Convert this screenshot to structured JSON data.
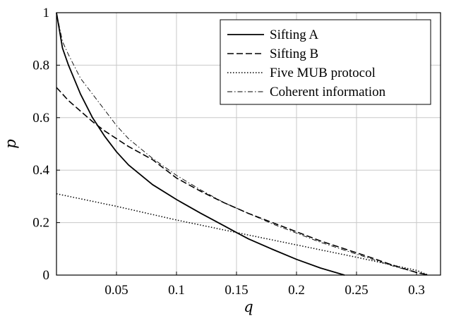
{
  "chart_data": {
    "type": "line",
    "xlabel": "q",
    "ylabel": "p",
    "xlim": [
      0,
      0.32
    ],
    "ylim": [
      0,
      1
    ],
    "xticks": [
      0.05,
      0.1,
      0.15,
      0.2,
      0.25,
      0.3
    ],
    "xtick_labels": [
      "0.05",
      "0.1",
      "0.15",
      "0.2",
      "0.25",
      "0.3"
    ],
    "yticks": [
      0,
      0.2,
      0.4,
      0.6,
      0.8,
      1
    ],
    "ytick_labels": [
      "0",
      "0.2",
      "0.4",
      "0.6",
      "0.8",
      "1"
    ],
    "grid": true,
    "legend_position": "top-right",
    "series": [
      {
        "name": "Sifting A",
        "style": "solid",
        "color": "#000000",
        "x": [
          0,
          0.005,
          0.01,
          0.02,
          0.03,
          0.04,
          0.05,
          0.06,
          0.08,
          0.1,
          0.12,
          0.14,
          0.15,
          0.16,
          0.18,
          0.2,
          0.22,
          0.24
        ],
        "y": [
          1.0,
          0.865,
          0.8,
          0.69,
          0.6,
          0.53,
          0.47,
          0.42,
          0.345,
          0.288,
          0.236,
          0.187,
          0.162,
          0.138,
          0.098,
          0.06,
          0.027,
          0.0
        ]
      },
      {
        "name": "Sifting B",
        "style": "dashed",
        "color": "#000000",
        "x": [
          0,
          0.01,
          0.02,
          0.03,
          0.04,
          0.05,
          0.06,
          0.08,
          0.1,
          0.12,
          0.14,
          0.15,
          0.16,
          0.18,
          0.2,
          0.22,
          0.24,
          0.26,
          0.28,
          0.3,
          0.31
        ],
        "y": [
          0.715,
          0.665,
          0.625,
          0.585,
          0.55,
          0.52,
          0.49,
          0.44,
          0.37,
          0.32,
          0.275,
          0.255,
          0.235,
          0.2,
          0.165,
          0.13,
          0.1,
          0.07,
          0.038,
          0.01,
          0.0
        ]
      },
      {
        "name": "Five MUB protocol",
        "style": "dotted",
        "color": "#000000",
        "x": [
          0,
          0.05,
          0.1,
          0.15,
          0.2,
          0.25,
          0.3,
          0.31
        ],
        "y": [
          0.31,
          0.262,
          0.21,
          0.162,
          0.115,
          0.068,
          0.018,
          0.0
        ]
      },
      {
        "name": "Coherent information",
        "style": "dashdot",
        "color": "#000000",
        "x": [
          0,
          0.005,
          0.01,
          0.02,
          0.03,
          0.04,
          0.05,
          0.06,
          0.08,
          0.1,
          0.12,
          0.14,
          0.15,
          0.16,
          0.18,
          0.2,
          0.22,
          0.24,
          0.26,
          0.28,
          0.3,
          0.31
        ],
        "y": [
          1.0,
          0.89,
          0.84,
          0.75,
          0.69,
          0.63,
          0.57,
          0.52,
          0.445,
          0.38,
          0.325,
          0.275,
          0.255,
          0.235,
          0.195,
          0.16,
          0.125,
          0.095,
          0.065,
          0.035,
          0.01,
          0.0
        ]
      }
    ]
  }
}
